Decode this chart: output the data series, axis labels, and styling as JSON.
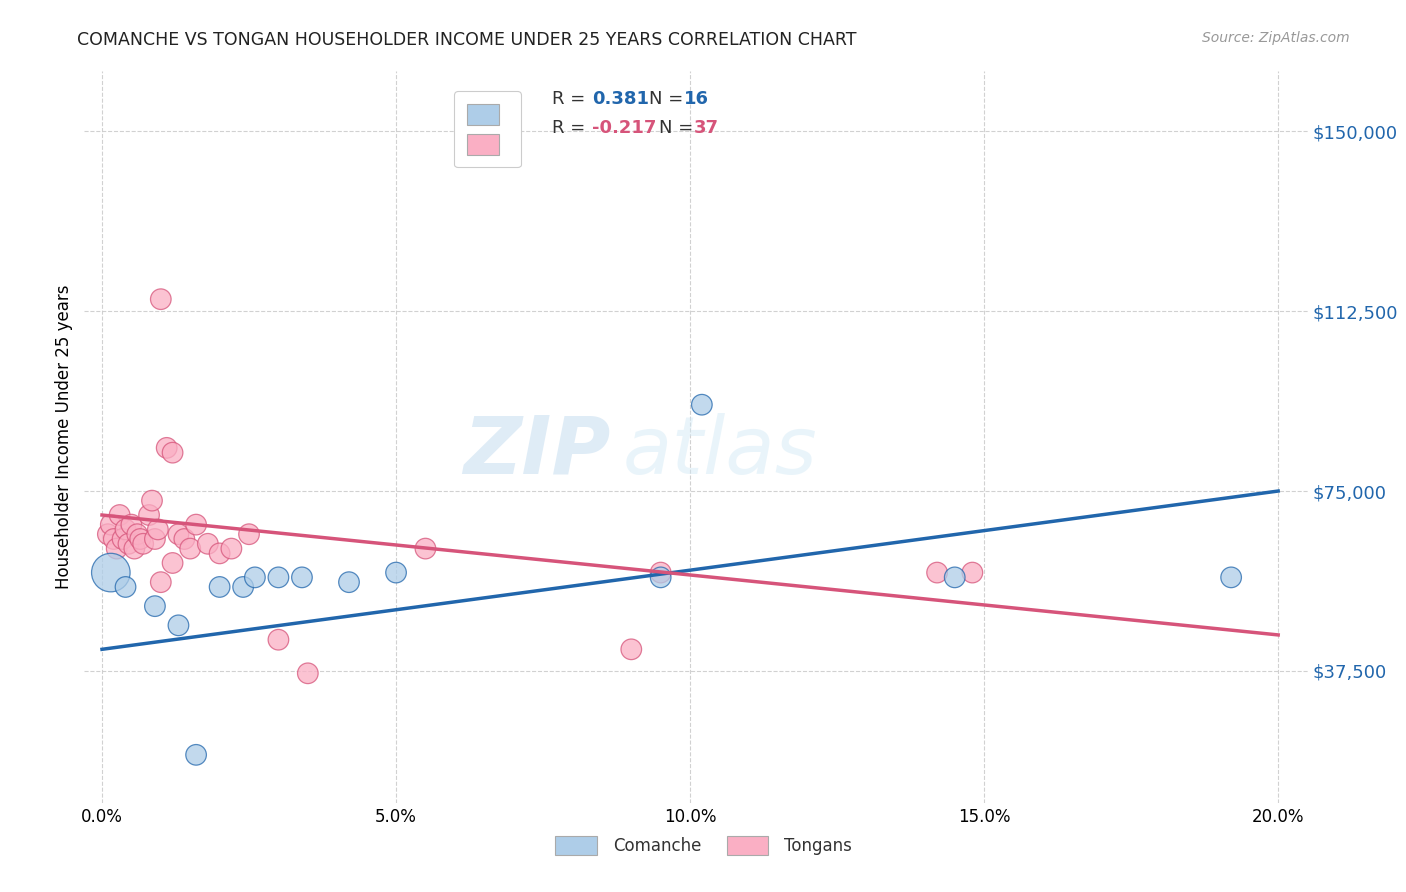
{
  "title": "COMANCHE VS TONGAN HOUSEHOLDER INCOME UNDER 25 YEARS CORRELATION CHART",
  "source": "Source: ZipAtlas.com",
  "ylabel": "Householder Income Under 25 years",
  "comanche_R": "0.381",
  "comanche_N": "16",
  "tongan_R": "-0.217",
  "tongan_N": "37",
  "comanche_color": "#aecde8",
  "tongan_color": "#faafc4",
  "comanche_line_color": "#2166ac",
  "tongan_line_color": "#d6547a",
  "watermark_zip": "ZIP",
  "watermark_atlas": "atlas",
  "xlim": [
    -0.3,
    20.5
  ],
  "ylim": [
    10000,
    162500
  ],
  "xtick_vals": [
    0.0,
    5.0,
    10.0,
    15.0,
    20.0
  ],
  "xtick_labels": [
    "0.0%",
    "5.0%",
    "10.0%",
    "15.0%",
    "20.0%"
  ],
  "ytick_vals": [
    37500,
    75000,
    112500,
    150000
  ],
  "ytick_labels": [
    "$37,500",
    "$75,000",
    "$112,500",
    "$150,000"
  ],
  "grid_color": "#cccccc",
  "bg_color": "#ffffff",
  "comanche_x": [
    0.15,
    0.4,
    0.9,
    1.3,
    1.6,
    2.0,
    2.4,
    2.6,
    3.0,
    3.4,
    4.2,
    5.0,
    9.5,
    10.2,
    14.5,
    19.2
  ],
  "comanche_y": [
    58000,
    55000,
    51000,
    47000,
    20000,
    55000,
    55000,
    57000,
    57000,
    57000,
    56000,
    58000,
    57000,
    93000,
    57000,
    57000
  ],
  "comanche_sizes": [
    350,
    100,
    100,
    100,
    100,
    100,
    100,
    100,
    100,
    100,
    100,
    100,
    100,
    100,
    100,
    100
  ],
  "tongan_x": [
    0.1,
    0.15,
    0.2,
    0.25,
    0.3,
    0.35,
    0.4,
    0.45,
    0.5,
    0.55,
    0.6,
    0.65,
    0.7,
    0.8,
    0.85,
    0.9,
    0.95,
    1.0,
    1.1,
    1.2,
    1.3,
    1.4,
    1.5,
    1.6,
    1.8,
    2.0,
    2.2,
    2.5,
    3.0,
    3.5,
    5.5,
    9.0,
    1.0,
    1.2,
    9.5,
    14.2,
    14.8
  ],
  "tongan_y": [
    66000,
    68000,
    65000,
    63000,
    70000,
    65000,
    67000,
    64000,
    68000,
    63000,
    66000,
    65000,
    64000,
    70000,
    73000,
    65000,
    67000,
    115000,
    84000,
    83000,
    66000,
    65000,
    63000,
    68000,
    64000,
    62000,
    63000,
    66000,
    44000,
    37000,
    63000,
    42000,
    56000,
    60000,
    58000,
    58000,
    58000
  ],
  "tongan_sizes": [
    100,
    100,
    100,
    100,
    100,
    100,
    100,
    100,
    100,
    100,
    100,
    100,
    100,
    100,
    100,
    100,
    100,
    100,
    100,
    100,
    100,
    100,
    100,
    100,
    100,
    100,
    100,
    100,
    100,
    100,
    100,
    100,
    100,
    100,
    100,
    100,
    100
  ],
  "comanche_trend": [
    42000,
    75000
  ],
  "tongan_trend": [
    70000,
    45000
  ],
  "trend_x": [
    0,
    20
  ]
}
